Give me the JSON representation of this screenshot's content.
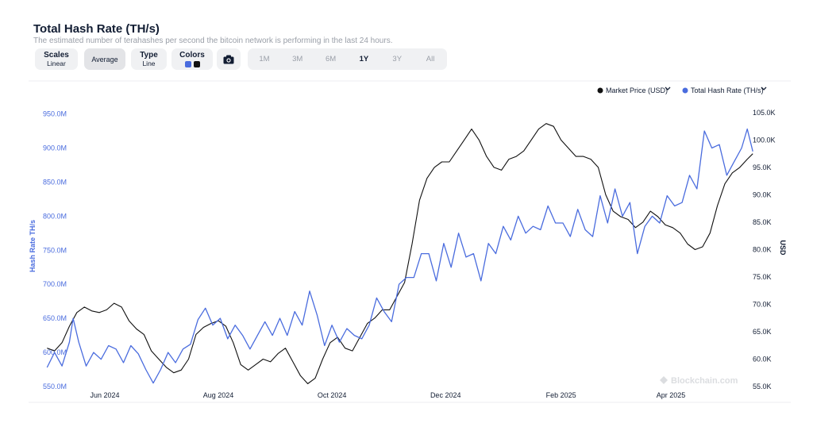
{
  "title": "Total Hash Rate (TH/s)",
  "subtitle": "The estimated number of terahashes per second the bitcoin network is performing in the last 24 hours.",
  "toolbar": {
    "scales": {
      "label": "Scales",
      "value": "Linear"
    },
    "average": {
      "label": "Average"
    },
    "type": {
      "label": "Type",
      "value": "Line"
    },
    "colors": {
      "label": "Colors",
      "swatch1": "#4a6cde",
      "swatch2": "#111111"
    },
    "camera_icon": "camera-icon",
    "ranges": [
      "1M",
      "3M",
      "6M",
      "1Y",
      "3Y",
      "All"
    ],
    "active_range": "1Y"
  },
  "legend": {
    "items": [
      {
        "label": "Market Price (USD)",
        "color": "#111111"
      },
      {
        "label": "Total Hash Rate (TH/s)",
        "color": "#4a6cde"
      }
    ]
  },
  "watermark": "Blockchain.com",
  "chart_data": {
    "type": "line",
    "x_range": [
      "2024-05-01",
      "2025-05-01"
    ],
    "x_ticks": [
      "Jun 2024",
      "Aug 2024",
      "Oct 2024",
      "Dec 2024",
      "Feb 2025",
      "Apr 2025"
    ],
    "y_left": {
      "label": "Hash Rate TH/s",
      "range": [
        550,
        960
      ],
      "unit": "M",
      "ticks": [
        "550.0M",
        "600.0M",
        "650.0M",
        "700.0M",
        "750.0M",
        "800.0M",
        "850.0M",
        "900.0M",
        "950.0M"
      ]
    },
    "y_right": {
      "label": "USD",
      "range": [
        55,
        106
      ],
      "ticks": [
        "55.0K",
        "60.0K",
        "65.0K",
        "70.0K",
        "75.0K",
        "80.0K",
        "85.0K",
        "90.0K",
        "95.0K",
        "100.0K",
        "105.0K"
      ]
    },
    "series": [
      {
        "name": "Total Hash Rate (TH/s)",
        "axis": "left",
        "color": "#4a6cde",
        "points": [
          [
            "2024-05-01",
            578
          ],
          [
            "2024-05-05",
            600
          ],
          [
            "2024-05-09",
            580
          ],
          [
            "2024-05-13",
            615
          ],
          [
            "2024-05-15",
            650
          ],
          [
            "2024-05-18",
            615
          ],
          [
            "2024-05-22",
            580
          ],
          [
            "2024-05-26",
            600
          ],
          [
            "2024-05-30",
            590
          ],
          [
            "2024-06-03",
            610
          ],
          [
            "2024-06-07",
            605
          ],
          [
            "2024-06-11",
            585
          ],
          [
            "2024-06-15",
            610
          ],
          [
            "2024-06-19",
            598
          ],
          [
            "2024-06-23",
            575
          ],
          [
            "2024-06-27",
            555
          ],
          [
            "2024-07-01",
            575
          ],
          [
            "2024-07-05",
            600
          ],
          [
            "2024-07-09",
            585
          ],
          [
            "2024-07-13",
            605
          ],
          [
            "2024-07-17",
            612
          ],
          [
            "2024-07-21",
            648
          ],
          [
            "2024-07-25",
            665
          ],
          [
            "2024-07-29",
            640
          ],
          [
            "2024-08-02",
            650
          ],
          [
            "2024-08-06",
            620
          ],
          [
            "2024-08-10",
            640
          ],
          [
            "2024-08-14",
            625
          ],
          [
            "2024-08-18",
            605
          ],
          [
            "2024-08-22",
            625
          ],
          [
            "2024-08-26",
            645
          ],
          [
            "2024-08-30",
            625
          ],
          [
            "2024-09-03",
            650
          ],
          [
            "2024-09-07",
            625
          ],
          [
            "2024-09-11",
            660
          ],
          [
            "2024-09-15",
            640
          ],
          [
            "2024-09-19",
            690
          ],
          [
            "2024-09-23",
            655
          ],
          [
            "2024-09-27",
            610
          ],
          [
            "2024-10-01",
            640
          ],
          [
            "2024-10-05",
            615
          ],
          [
            "2024-10-09",
            635
          ],
          [
            "2024-10-13",
            625
          ],
          [
            "2024-10-17",
            620
          ],
          [
            "2024-10-21",
            640
          ],
          [
            "2024-10-25",
            680
          ],
          [
            "2024-10-29",
            660
          ],
          [
            "2024-11-02",
            645
          ],
          [
            "2024-11-06",
            700
          ],
          [
            "2024-11-10",
            710
          ],
          [
            "2024-11-14",
            710
          ],
          [
            "2024-11-18",
            745
          ],
          [
            "2024-11-22",
            745
          ],
          [
            "2024-11-26",
            705
          ],
          [
            "2024-11-30",
            760
          ],
          [
            "2024-12-04",
            725
          ],
          [
            "2024-12-08",
            775
          ],
          [
            "2024-12-12",
            740
          ],
          [
            "2024-12-16",
            745
          ],
          [
            "2024-12-20",
            705
          ],
          [
            "2024-12-24",
            760
          ],
          [
            "2024-12-28",
            745
          ],
          [
            "2025-01-01",
            785
          ],
          [
            "2025-01-05",
            765
          ],
          [
            "2025-01-09",
            800
          ],
          [
            "2025-01-13",
            775
          ],
          [
            "2025-01-17",
            785
          ],
          [
            "2025-01-21",
            780
          ],
          [
            "2025-01-25",
            815
          ],
          [
            "2025-01-29",
            790
          ],
          [
            "2025-02-02",
            790
          ],
          [
            "2025-02-06",
            770
          ],
          [
            "2025-02-10",
            810
          ],
          [
            "2025-02-14",
            780
          ],
          [
            "2025-02-18",
            770
          ],
          [
            "2025-02-22",
            830
          ],
          [
            "2025-02-26",
            790
          ],
          [
            "2025-03-02",
            840
          ],
          [
            "2025-03-06",
            800
          ],
          [
            "2025-03-10",
            820
          ],
          [
            "2025-03-14",
            745
          ],
          [
            "2025-03-18",
            785
          ],
          [
            "2025-03-22",
            800
          ],
          [
            "2025-03-26",
            790
          ],
          [
            "2025-03-30",
            830
          ],
          [
            "2025-04-03",
            815
          ],
          [
            "2025-04-07",
            820
          ],
          [
            "2025-04-11",
            860
          ],
          [
            "2025-04-15",
            840
          ],
          [
            "2025-04-19",
            925
          ],
          [
            "2025-04-23",
            900
          ],
          [
            "2025-04-27",
            905
          ],
          [
            "2025-05-01",
            860
          ],
          [
            "2025-05-05",
            880
          ],
          [
            "2025-05-09",
            900
          ],
          [
            "2025-05-12",
            928
          ],
          [
            "2025-05-15",
            895
          ]
        ]
      },
      {
        "name": "Market Price (USD)",
        "axis": "right",
        "color": "#111111",
        "points": [
          [
            "2024-05-01",
            62
          ],
          [
            "2024-05-05",
            61.5
          ],
          [
            "2024-05-09",
            63
          ],
          [
            "2024-05-13",
            66
          ],
          [
            "2024-05-17",
            68.5
          ],
          [
            "2024-05-21",
            69.5
          ],
          [
            "2024-05-25",
            68.8
          ],
          [
            "2024-05-29",
            68.5
          ],
          [
            "2024-06-02",
            69
          ],
          [
            "2024-06-06",
            70.2
          ],
          [
            "2024-06-10",
            69.5
          ],
          [
            "2024-06-14",
            67
          ],
          [
            "2024-06-18",
            65.5
          ],
          [
            "2024-06-22",
            64.5
          ],
          [
            "2024-06-26",
            61.5
          ],
          [
            "2024-06-30",
            60
          ],
          [
            "2024-07-04",
            58.5
          ],
          [
            "2024-07-08",
            57.5
          ],
          [
            "2024-07-12",
            58
          ],
          [
            "2024-07-16",
            60
          ],
          [
            "2024-07-20",
            64.5
          ],
          [
            "2024-07-24",
            65.8
          ],
          [
            "2024-07-28",
            66.5
          ],
          [
            "2024-08-01",
            67
          ],
          [
            "2024-08-05",
            66
          ],
          [
            "2024-08-09",
            63
          ],
          [
            "2024-08-13",
            59
          ],
          [
            "2024-08-17",
            58
          ],
          [
            "2024-08-21",
            59
          ],
          [
            "2024-08-25",
            60
          ],
          [
            "2024-08-29",
            59.5
          ],
          [
            "2024-09-02",
            61
          ],
          [
            "2024-09-06",
            62
          ],
          [
            "2024-09-10",
            59.5
          ],
          [
            "2024-09-14",
            57
          ],
          [
            "2024-09-18",
            55.5
          ],
          [
            "2024-09-22",
            56.5
          ],
          [
            "2024-09-26",
            60
          ],
          [
            "2024-09-30",
            63
          ],
          [
            "2024-10-04",
            64
          ],
          [
            "2024-10-08",
            62
          ],
          [
            "2024-10-12",
            61.5
          ],
          [
            "2024-10-16",
            64
          ],
          [
            "2024-10-20",
            66.5
          ],
          [
            "2024-10-24",
            67.5
          ],
          [
            "2024-10-28",
            69
          ],
          [
            "2024-11-01",
            69
          ],
          [
            "2024-11-05",
            71.5
          ],
          [
            "2024-11-09",
            74
          ],
          [
            "2024-11-13",
            81
          ],
          [
            "2024-11-17",
            89
          ],
          [
            "2024-11-21",
            93
          ],
          [
            "2024-11-25",
            95
          ],
          [
            "2024-11-29",
            96
          ],
          [
            "2024-12-03",
            96
          ],
          [
            "2024-12-07",
            98
          ],
          [
            "2024-12-11",
            100
          ],
          [
            "2024-12-15",
            102
          ],
          [
            "2024-12-19",
            100
          ],
          [
            "2024-12-23",
            97
          ],
          [
            "2024-12-27",
            95
          ],
          [
            "2024-12-31",
            94.5
          ],
          [
            "2025-01-04",
            96.5
          ],
          [
            "2025-01-08",
            97
          ],
          [
            "2025-01-12",
            98
          ],
          [
            "2025-01-16",
            100
          ],
          [
            "2025-01-20",
            102
          ],
          [
            "2025-01-24",
            103
          ],
          [
            "2025-01-28",
            102.5
          ],
          [
            "2025-02-01",
            100
          ],
          [
            "2025-02-05",
            98.5
          ],
          [
            "2025-02-09",
            97
          ],
          [
            "2025-02-13",
            97
          ],
          [
            "2025-02-17",
            96.5
          ],
          [
            "2025-02-21",
            95
          ],
          [
            "2025-02-25",
            90
          ],
          [
            "2025-03-01",
            87
          ],
          [
            "2025-03-05",
            86
          ],
          [
            "2025-03-09",
            85.5
          ],
          [
            "2025-03-13",
            84
          ],
          [
            "2025-03-17",
            85
          ],
          [
            "2025-03-21",
            87
          ],
          [
            "2025-03-25",
            86
          ],
          [
            "2025-03-29",
            84.5
          ],
          [
            "2025-04-02",
            84
          ],
          [
            "2025-04-06",
            83
          ],
          [
            "2025-04-10",
            81
          ],
          [
            "2025-04-14",
            80
          ],
          [
            "2025-04-18",
            80.5
          ],
          [
            "2025-04-22",
            83
          ],
          [
            "2025-04-26",
            88
          ],
          [
            "2025-04-30",
            92
          ],
          [
            "2025-05-04",
            94
          ],
          [
            "2025-05-08",
            95
          ],
          [
            "2025-05-12",
            96.5
          ],
          [
            "2025-05-15",
            97.5
          ]
        ]
      }
    ]
  }
}
